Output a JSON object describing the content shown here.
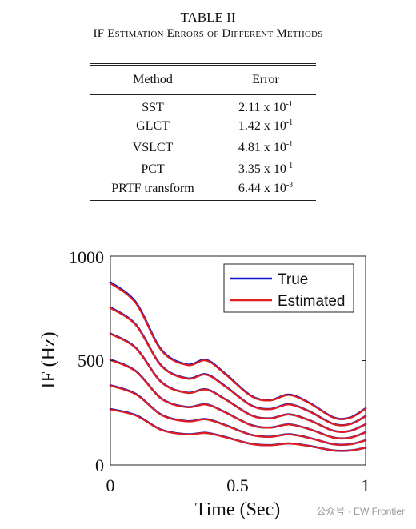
{
  "table": {
    "number": "TABLE II",
    "title": "IF Estimation Errors of Different Methods",
    "headers": {
      "method": "Method",
      "error": "Error"
    },
    "rows": [
      {
        "method": "SST",
        "mantissa": "2.11 x 10",
        "exponent": "-1"
      },
      {
        "method": "GLCT",
        "mantissa": "1.42 x 10",
        "exponent": "-1"
      },
      {
        "method": "VSLCT",
        "mantissa": "4.81 x 10",
        "exponent": "-1"
      },
      {
        "method": "PCT",
        "mantissa": "3.35 x 10",
        "exponent": "-1"
      },
      {
        "method": "PRTF transform",
        "mantissa": "6.44 x 10",
        "exponent": "-3"
      }
    ]
  },
  "chart_data": {
    "type": "line",
    "xlabel": "Time (Sec)",
    "ylabel": "IF (Hz)",
    "xlim": [
      0,
      1
    ],
    "ylim": [
      0,
      1000
    ],
    "xticks": [
      "0",
      "0.5",
      "1"
    ],
    "yticks": [
      "0",
      "500",
      "1000"
    ],
    "legend": {
      "position": "top-right",
      "entries": [
        "True",
        "Estimated"
      ]
    },
    "colors": {
      "True": "#0a14c8",
      "Estimated": "#e01e1e"
    },
    "grid": false,
    "x": [
      0,
      0.1,
      0.2,
      0.3,
      0.375,
      0.45,
      0.55,
      0.625,
      0.7,
      0.78,
      0.875,
      0.94,
      1.0
    ],
    "base_curve": [
      1.0,
      0.89,
      0.63,
      0.55,
      0.575,
      0.5,
      0.38,
      0.355,
      0.385,
      0.34,
      0.26,
      0.26,
      0.31
    ],
    "series": [
      {
        "name": "True",
        "scale": [
          875,
          755,
          630,
          505,
          382,
          268
        ]
      },
      {
        "name": "Estimated",
        "scale": [
          870,
          752,
          628,
          503,
          380,
          266
        ]
      }
    ]
  },
  "watermark": "公众号 · EW Frontier"
}
